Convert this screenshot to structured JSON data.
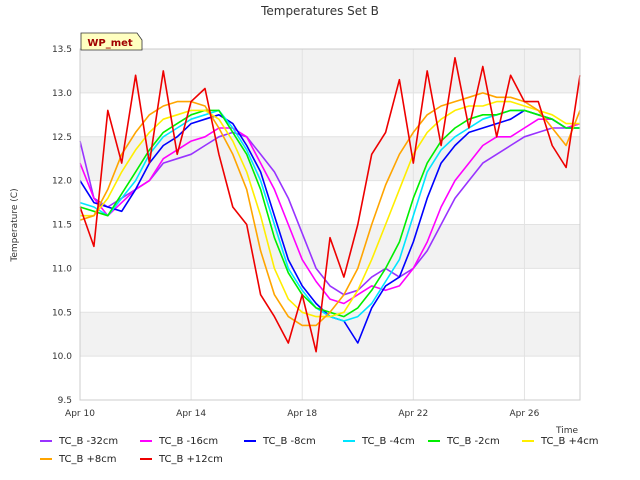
{
  "chart_data": {
    "type": "line",
    "title": "Temperatures Set B",
    "xlabel": "Time",
    "ylabel": "Temperature (C)",
    "badge": "WP_met",
    "xlim": [
      0,
      18
    ],
    "ylim": [
      9.5,
      13.5
    ],
    "x_ticks": [
      {
        "label": "Apr 10",
        "day": 0
      },
      {
        "label": "Apr 14",
        "day": 4
      },
      {
        "label": "Apr 18",
        "day": 8
      },
      {
        "label": "Apr 22",
        "day": 12
      },
      {
        "label": "Apr 26",
        "day": 16
      }
    ],
    "y_ticks": [
      "9.5",
      "10.0",
      "10.5",
      "11.0",
      "11.5",
      "12.0",
      "12.5",
      "13.0",
      "13.5"
    ],
    "grid": true,
    "legend_position": "bottom",
    "x_days": [
      0,
      0.5,
      1,
      1.5,
      2,
      2.5,
      3,
      3.5,
      4,
      4.5,
      5,
      5.5,
      6,
      6.5,
      7,
      7.5,
      8,
      8.5,
      9,
      9.5,
      10,
      10.5,
      11,
      11.5,
      12,
      12.5,
      13,
      13.5,
      14,
      14.5,
      15,
      15.5,
      16,
      16.5,
      17,
      17.5,
      18
    ],
    "series": [
      {
        "name": "TC_B -32cm",
        "color": "#9933ff",
        "values": [
          12.45,
          11.8,
          11.7,
          11.8,
          11.9,
          12.0,
          12.2,
          12.25,
          12.3,
          12.4,
          12.5,
          12.55,
          12.5,
          12.3,
          12.1,
          11.8,
          11.4,
          11.0,
          10.8,
          10.7,
          10.75,
          10.9,
          11.0,
          10.9,
          11.0,
          11.2,
          11.5,
          11.8,
          12.0,
          12.2,
          12.3,
          12.4,
          12.5,
          12.55,
          12.6,
          12.6,
          12.65
        ]
      },
      {
        "name": "TC_B -16cm",
        "color": "#ff00ff",
        "values": [
          12.2,
          11.8,
          11.6,
          11.75,
          11.9,
          12.0,
          12.25,
          12.35,
          12.45,
          12.5,
          12.6,
          12.6,
          12.5,
          12.2,
          11.9,
          11.5,
          11.1,
          10.85,
          10.65,
          10.6,
          10.7,
          10.8,
          10.75,
          10.8,
          11.0,
          11.3,
          11.7,
          12.0,
          12.2,
          12.4,
          12.5,
          12.5,
          12.6,
          12.7,
          12.7,
          12.6,
          12.65
        ]
      },
      {
        "name": "TC_B -8cm",
        "color": "#0000ff",
        "values": [
          12.0,
          11.75,
          11.7,
          11.65,
          11.9,
          12.2,
          12.4,
          12.5,
          12.65,
          12.7,
          12.75,
          12.65,
          12.4,
          12.1,
          11.6,
          11.1,
          10.8,
          10.6,
          10.45,
          10.4,
          10.15,
          10.55,
          10.8,
          10.9,
          11.3,
          11.8,
          12.2,
          12.4,
          12.55,
          12.6,
          12.65,
          12.7,
          12.8,
          12.75,
          12.7,
          12.6,
          12.6
        ]
      },
      {
        "name": "TC_B -4cm",
        "color": "#00e5ff",
        "values": [
          11.75,
          11.7,
          11.6,
          11.8,
          12.0,
          12.3,
          12.5,
          12.6,
          12.7,
          12.75,
          12.8,
          12.6,
          12.35,
          12.0,
          11.5,
          11.0,
          10.75,
          10.55,
          10.45,
          10.4,
          10.45,
          10.6,
          10.85,
          11.1,
          11.6,
          12.1,
          12.35,
          12.5,
          12.6,
          12.7,
          12.75,
          12.8,
          12.8,
          12.75,
          12.7,
          12.6,
          12.6
        ]
      },
      {
        "name": "TC_B -2cm",
        "color": "#00ee00",
        "values": [
          11.7,
          11.65,
          11.6,
          11.85,
          12.1,
          12.35,
          12.55,
          12.65,
          12.75,
          12.8,
          12.8,
          12.55,
          12.3,
          11.9,
          11.35,
          10.95,
          10.7,
          10.55,
          10.5,
          10.45,
          10.55,
          10.75,
          11.0,
          11.3,
          11.8,
          12.2,
          12.45,
          12.6,
          12.7,
          12.75,
          12.75,
          12.8,
          12.8,
          12.75,
          12.7,
          12.6,
          12.6
        ]
      },
      {
        "name": "TC_B +4cm",
        "color": "#ffee00",
        "values": [
          11.6,
          11.6,
          11.8,
          12.1,
          12.35,
          12.55,
          12.7,
          12.75,
          12.8,
          12.8,
          12.7,
          12.45,
          12.1,
          11.6,
          11.0,
          10.65,
          10.5,
          10.45,
          10.45,
          10.5,
          10.75,
          11.1,
          11.5,
          11.9,
          12.3,
          12.55,
          12.7,
          12.8,
          12.85,
          12.85,
          12.9,
          12.9,
          12.85,
          12.8,
          12.75,
          12.65,
          12.65
        ]
      },
      {
        "name": "TC_B +8cm",
        "color": "#ffa500",
        "values": [
          11.55,
          11.6,
          11.9,
          12.3,
          12.55,
          12.75,
          12.85,
          12.9,
          12.9,
          12.85,
          12.6,
          12.3,
          11.9,
          11.2,
          10.7,
          10.45,
          10.35,
          10.35,
          10.5,
          10.7,
          11.0,
          11.5,
          11.95,
          12.3,
          12.55,
          12.75,
          12.85,
          12.9,
          12.95,
          13.0,
          12.95,
          12.95,
          12.9,
          12.8,
          12.6,
          12.4,
          12.8
        ]
      },
      {
        "name": "TC_B +12cm",
        "color": "#ee0000",
        "values": [
          11.7,
          11.25,
          12.8,
          12.2,
          13.2,
          12.2,
          13.25,
          12.3,
          12.9,
          13.05,
          12.3,
          11.7,
          11.5,
          10.7,
          10.45,
          10.15,
          10.7,
          10.05,
          11.35,
          10.9,
          11.5,
          12.3,
          12.55,
          13.15,
          12.2,
          13.25,
          12.4,
          13.4,
          12.6,
          13.3,
          12.5,
          13.2,
          12.9,
          12.9,
          12.4,
          12.15,
          13.2
        ]
      }
    ]
  }
}
